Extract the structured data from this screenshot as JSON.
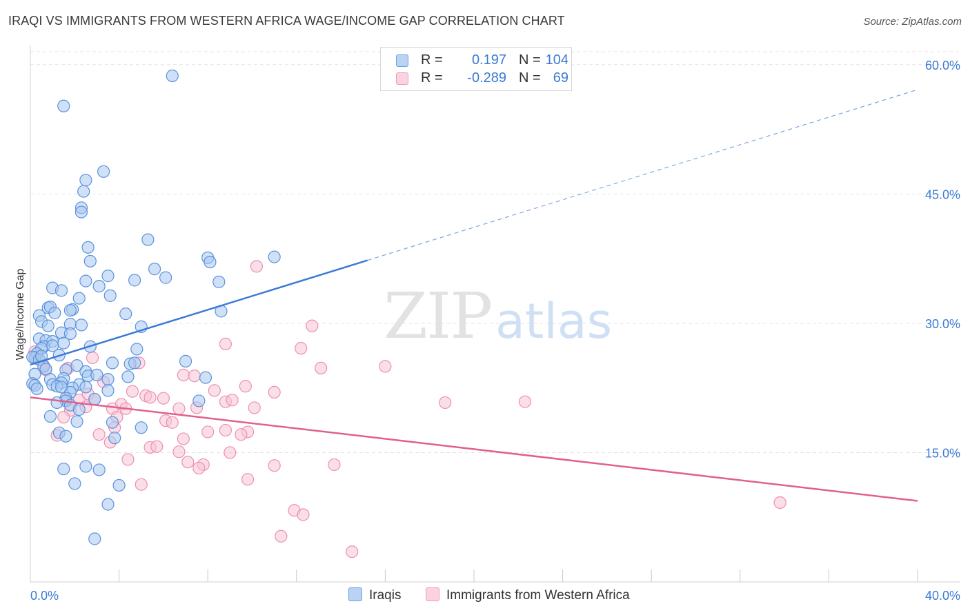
{
  "title": "IRAQI VS IMMIGRANTS FROM WESTERN AFRICA WAGE/INCOME GAP CORRELATION CHART",
  "source": "Source: ZipAtlas.com",
  "watermark": {
    "zip": "ZIP",
    "atlas": "atlas"
  },
  "legend": {
    "rows": [
      {
        "r_label": "R =",
        "r_value": "0.197",
        "n_label": "N =",
        "n_value": "104",
        "color": "#7eaee8"
      },
      {
        "r_label": "R =",
        "r_value": "-0.289",
        "n_label": "N =",
        "n_value": "69",
        "color": "#f2a7c0"
      }
    ]
  },
  "bottom_legend": {
    "series1": "Iraqis",
    "series2": "Immigrants from Western Africa"
  },
  "colors": {
    "blue": "#3a7bd5",
    "blue_fill": "#a9c8f0",
    "blue_stroke": "#5a93dc",
    "pink": "#e0608e",
    "pink_fill": "#f7c5d5",
    "pink_stroke": "#ee8fb0",
    "grid": "#e3e3e3",
    "tick_label": "#3a7bd5"
  },
  "chart_data": {
    "type": "scatter",
    "title": "IRAQI VS IMMIGRANTS FROM WESTERN AFRICA WAGE/INCOME GAP CORRELATION CHART",
    "xlabel": "",
    "ylabel": "Wage/Income Gap",
    "xlim": [
      0,
      40
    ],
    "ylim": [
      0,
      61.5
    ],
    "x_tick_labels": [
      "0.0%",
      "40.0%"
    ],
    "y_ticks": [
      15,
      30,
      45,
      60
    ],
    "y_tick_labels": [
      "15.0%",
      "30.0%",
      "45.0%",
      "60.0%"
    ],
    "grid": true,
    "legend_position": "top-center",
    "series": [
      {
        "name": "Iraqis",
        "r": 0.197,
        "n": 104,
        "trend": {
          "x0": 0,
          "y0": 25.2,
          "x1": 15.2,
          "y1": 37.3,
          "dash_to_x": 40,
          "dash_to_y": 57.1
        },
        "points": [
          [
            6.4,
            58.7
          ],
          [
            1.5,
            55.2
          ],
          [
            3.3,
            47.6
          ],
          [
            2.5,
            46.6
          ],
          [
            2.4,
            45.3
          ],
          [
            2.3,
            43.4
          ],
          [
            2.3,
            42.9
          ],
          [
            5.3,
            39.7
          ],
          [
            2.6,
            38.8
          ],
          [
            8.0,
            37.6
          ],
          [
            8.1,
            37.1
          ],
          [
            2.7,
            37.2
          ],
          [
            5.6,
            36.3
          ],
          [
            3.5,
            35.5
          ],
          [
            6.1,
            35.3
          ],
          [
            4.7,
            35.0
          ],
          [
            2.5,
            34.9
          ],
          [
            8.5,
            34.8
          ],
          [
            3.1,
            34.3
          ],
          [
            1.0,
            34.1
          ],
          [
            1.4,
            33.8
          ],
          [
            3.6,
            33.2
          ],
          [
            2.2,
            32.9
          ],
          [
            0.8,
            31.8
          ],
          [
            0.9,
            31.9
          ],
          [
            1.9,
            31.6
          ],
          [
            1.1,
            31.2
          ],
          [
            1.8,
            31.5
          ],
          [
            8.6,
            31.4
          ],
          [
            4.3,
            31.1
          ],
          [
            0.4,
            30.9
          ],
          [
            0.5,
            30.2
          ],
          [
            1.8,
            29.9
          ],
          [
            5.0,
            29.6
          ],
          [
            1.4,
            28.9
          ],
          [
            1.8,
            28.8
          ],
          [
            0.4,
            28.2
          ],
          [
            0.7,
            28.0
          ],
          [
            1.0,
            27.9
          ],
          [
            1.5,
            27.7
          ],
          [
            0.6,
            27.3
          ],
          [
            1.0,
            27.4
          ],
          [
            0.5,
            27.1
          ],
          [
            2.7,
            27.3
          ],
          [
            4.8,
            27.0
          ],
          [
            0.3,
            26.5
          ],
          [
            0.2,
            26.0
          ],
          [
            0.1,
            26.1
          ],
          [
            0.4,
            25.8
          ],
          [
            1.3,
            26.3
          ],
          [
            7.0,
            25.6
          ],
          [
            3.7,
            25.4
          ],
          [
            4.5,
            25.3
          ],
          [
            4.7,
            25.4
          ],
          [
            2.1,
            25.1
          ],
          [
            0.6,
            25.0
          ],
          [
            0.7,
            24.7
          ],
          [
            1.6,
            24.6
          ],
          [
            2.5,
            24.4
          ],
          [
            0.2,
            24.1
          ],
          [
            2.6,
            23.9
          ],
          [
            4.4,
            23.8
          ],
          [
            7.9,
            23.7
          ],
          [
            1.5,
            23.6
          ],
          [
            0.9,
            23.5
          ],
          [
            3.5,
            23.5
          ],
          [
            0.1,
            23.0
          ],
          [
            0.2,
            22.8
          ],
          [
            1.0,
            22.9
          ],
          [
            1.4,
            23.1
          ],
          [
            2.2,
            22.9
          ],
          [
            1.2,
            22.7
          ],
          [
            2.5,
            22.6
          ],
          [
            1.9,
            22.5
          ],
          [
            0.3,
            22.4
          ],
          [
            1.8,
            22.0
          ],
          [
            3.5,
            22.2
          ],
          [
            1.6,
            21.3
          ],
          [
            2.9,
            21.2
          ],
          [
            1.6,
            21.0
          ],
          [
            7.6,
            21.0
          ],
          [
            1.2,
            20.8
          ],
          [
            1.8,
            20.5
          ],
          [
            2.2,
            20.0
          ],
          [
            0.9,
            19.2
          ],
          [
            2.1,
            18.6
          ],
          [
            3.7,
            18.5
          ],
          [
            5.0,
            17.9
          ],
          [
            1.3,
            17.3
          ],
          [
            1.6,
            16.9
          ],
          [
            3.8,
            16.7
          ],
          [
            2.5,
            13.4
          ],
          [
            3.1,
            13.0
          ],
          [
            1.5,
            13.1
          ],
          [
            2.0,
            11.4
          ],
          [
            4.0,
            11.2
          ],
          [
            3.5,
            9.0
          ],
          [
            2.9,
            5.0
          ],
          [
            0.5,
            26.2
          ],
          [
            1.4,
            22.6
          ],
          [
            3.0,
            24.0
          ],
          [
            0.8,
            29.7
          ],
          [
            2.3,
            29.8
          ],
          [
            11.0,
            37.7
          ]
        ]
      },
      {
        "name": "Immigrants from Western Africa",
        "r": -0.289,
        "n": 69,
        "trend": {
          "x0": 0,
          "y0": 21.4,
          "x1": 40,
          "y1": 9.4
        },
        "points": [
          [
            10.2,
            36.6
          ],
          [
            12.7,
            29.7
          ],
          [
            8.8,
            27.6
          ],
          [
            12.2,
            27.1
          ],
          [
            0.2,
            26.7
          ],
          [
            0.3,
            25.9
          ],
          [
            0.6,
            25.1
          ],
          [
            0.7,
            24.6
          ],
          [
            1.7,
            24.8
          ],
          [
            4.9,
            25.4
          ],
          [
            16.0,
            25.0
          ],
          [
            13.1,
            24.8
          ],
          [
            2.8,
            26.0
          ],
          [
            6.9,
            24.0
          ],
          [
            7.4,
            23.9
          ],
          [
            3.3,
            23.2
          ],
          [
            9.7,
            22.7
          ],
          [
            8.3,
            22.2
          ],
          [
            11.0,
            22.0
          ],
          [
            4.6,
            22.1
          ],
          [
            5.2,
            21.6
          ],
          [
            6.0,
            21.3
          ],
          [
            1.6,
            21.3
          ],
          [
            2.2,
            21.1
          ],
          [
            2.6,
            21.8
          ],
          [
            2.9,
            21.2
          ],
          [
            18.7,
            20.8
          ],
          [
            22.3,
            20.9
          ],
          [
            8.8,
            20.9
          ],
          [
            4.1,
            20.6
          ],
          [
            4.3,
            20.1
          ],
          [
            7.5,
            20.2
          ],
          [
            3.7,
            20.1
          ],
          [
            10.1,
            20.2
          ],
          [
            1.8,
            19.9
          ],
          [
            2.5,
            20.3
          ],
          [
            1.5,
            19.1
          ],
          [
            3.9,
            19.1
          ],
          [
            6.1,
            18.7
          ],
          [
            6.4,
            18.5
          ],
          [
            3.8,
            17.9
          ],
          [
            8.0,
            17.4
          ],
          [
            8.8,
            17.6
          ],
          [
            9.8,
            17.4
          ],
          [
            9.5,
            17.1
          ],
          [
            1.2,
            17.0
          ],
          [
            3.1,
            17.1
          ],
          [
            3.6,
            16.2
          ],
          [
            6.9,
            16.6
          ],
          [
            5.4,
            15.6
          ],
          [
            5.7,
            15.7
          ],
          [
            6.7,
            15.1
          ],
          [
            9.0,
            15.0
          ],
          [
            4.4,
            14.2
          ],
          [
            7.1,
            13.9
          ],
          [
            7.8,
            13.6
          ],
          [
            11.0,
            13.5
          ],
          [
            13.7,
            13.6
          ],
          [
            7.6,
            13.2
          ],
          [
            9.8,
            11.9
          ],
          [
            5.0,
            11.3
          ],
          [
            11.9,
            8.3
          ],
          [
            12.3,
            7.8
          ],
          [
            11.3,
            5.3
          ],
          [
            14.5,
            3.5
          ],
          [
            33.8,
            9.2
          ],
          [
            6.7,
            20.1
          ],
          [
            5.4,
            21.4
          ],
          [
            9.1,
            21.1
          ]
        ]
      }
    ]
  }
}
